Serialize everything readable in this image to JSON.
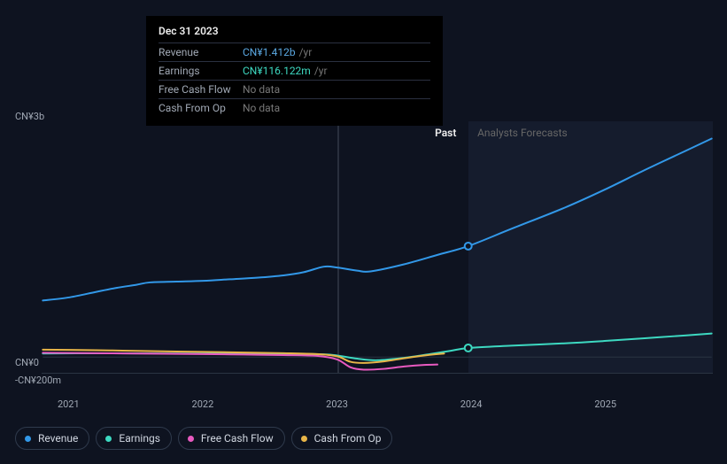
{
  "tooltip": {
    "date": "Dec 31 2023",
    "rows": [
      {
        "label": "Revenue",
        "value": "CN¥1.412b",
        "unit": "/yr",
        "value_color": "#5aa7e0"
      },
      {
        "label": "Earnings",
        "value": "CN¥116.122m",
        "unit": "/yr",
        "value_color": "#3dd9c1"
      },
      {
        "label": "Free Cash Flow",
        "value": "No data",
        "unit": "",
        "value_color": "#777"
      },
      {
        "label": "Cash From Op",
        "value": "No data",
        "unit": "",
        "value_color": "#777"
      }
    ]
  },
  "chart": {
    "background": "#0e1320",
    "grid_color": "#2a3442",
    "forecast_shade": "#151c2d",
    "y_axis": {
      "top": {
        "label": "CN¥3b",
        "value": 3000
      },
      "zero": {
        "label": "CN¥0",
        "value": 0
      },
      "bottom": {
        "label": "-CN¥200m",
        "value": -200
      }
    },
    "x_axis": {
      "min": 2020.8,
      "max": 2025.8,
      "marker_x": 2023.98,
      "ticks": [
        {
          "x": 2021,
          "label": "2021"
        },
        {
          "x": 2022,
          "label": "2022"
        },
        {
          "x": 2023,
          "label": "2023"
        },
        {
          "x": 2024,
          "label": "2024"
        },
        {
          "x": 2025,
          "label": "2025"
        }
      ]
    },
    "regions": {
      "past": {
        "label": "Past",
        "end_x": 2023.98
      },
      "forecast": {
        "label": "Analysts Forecasts"
      }
    },
    "series": [
      {
        "name": "Revenue",
        "color": "#3298e8",
        "width": 2,
        "marker_at_split": true,
        "points": [
          [
            2020.8,
            720
          ],
          [
            2021.0,
            760
          ],
          [
            2021.2,
            830
          ],
          [
            2021.35,
            880
          ],
          [
            2021.5,
            920
          ],
          [
            2021.6,
            950
          ],
          [
            2021.8,
            960
          ],
          [
            2022.0,
            970
          ],
          [
            2022.2,
            990
          ],
          [
            2022.4,
            1010
          ],
          [
            2022.6,
            1040
          ],
          [
            2022.75,
            1080
          ],
          [
            2022.9,
            1150
          ],
          [
            2023.0,
            1140
          ],
          [
            2023.15,
            1100
          ],
          [
            2023.25,
            1090
          ],
          [
            2023.5,
            1180
          ],
          [
            2023.75,
            1300
          ],
          [
            2023.98,
            1412
          ],
          [
            2024.3,
            1630
          ],
          [
            2024.7,
            1900
          ],
          [
            2025.0,
            2130
          ],
          [
            2025.3,
            2380
          ],
          [
            2025.6,
            2620
          ],
          [
            2025.8,
            2780
          ]
        ]
      },
      {
        "name": "Earnings",
        "color": "#3dd9c1",
        "width": 2,
        "marker_at_split": true,
        "points": [
          [
            2020.8,
            45
          ],
          [
            2021.2,
            48
          ],
          [
            2021.6,
            46
          ],
          [
            2022.0,
            44
          ],
          [
            2022.4,
            42
          ],
          [
            2022.7,
            40
          ],
          [
            2022.9,
            35
          ],
          [
            2023.0,
            20
          ],
          [
            2023.15,
            -20
          ],
          [
            2023.3,
            -40
          ],
          [
            2023.5,
            -10
          ],
          [
            2023.7,
            40
          ],
          [
            2023.85,
            80
          ],
          [
            2023.98,
            116
          ],
          [
            2024.3,
            145
          ],
          [
            2024.7,
            175
          ],
          [
            2025.0,
            205
          ],
          [
            2025.3,
            240
          ],
          [
            2025.6,
            275
          ],
          [
            2025.8,
            300
          ]
        ]
      },
      {
        "name": "Free Cash Flow",
        "color": "#e85ac0",
        "width": 2,
        "points": [
          [
            2020.8,
            55
          ],
          [
            2021.0,
            52
          ],
          [
            2021.3,
            48
          ],
          [
            2021.6,
            44
          ],
          [
            2022.0,
            38
          ],
          [
            2022.3,
            32
          ],
          [
            2022.6,
            26
          ],
          [
            2022.85,
            15
          ],
          [
            2023.0,
            -30
          ],
          [
            2023.1,
            -130
          ],
          [
            2023.2,
            -160
          ],
          [
            2023.35,
            -150
          ],
          [
            2023.5,
            -120
          ],
          [
            2023.65,
            -100
          ],
          [
            2023.75,
            -95
          ]
        ]
      },
      {
        "name": "Cash From Op",
        "color": "#e8b548",
        "width": 2,
        "points": [
          [
            2020.8,
            95
          ],
          [
            2021.0,
            92
          ],
          [
            2021.3,
            85
          ],
          [
            2021.6,
            76
          ],
          [
            2022.0,
            66
          ],
          [
            2022.3,
            58
          ],
          [
            2022.6,
            50
          ],
          [
            2022.85,
            38
          ],
          [
            2023.0,
            10
          ],
          [
            2023.1,
            -60
          ],
          [
            2023.2,
            -75
          ],
          [
            2023.35,
            -55
          ],
          [
            2023.5,
            -15
          ],
          [
            2023.65,
            20
          ],
          [
            2023.8,
            45
          ]
        ]
      }
    ]
  },
  "legend": [
    {
      "label": "Revenue",
      "color": "#3298e8"
    },
    {
      "label": "Earnings",
      "color": "#3dd9c1"
    },
    {
      "label": "Free Cash Flow",
      "color": "#e85ac0"
    },
    {
      "label": "Cash From Op",
      "color": "#e8b548"
    }
  ]
}
